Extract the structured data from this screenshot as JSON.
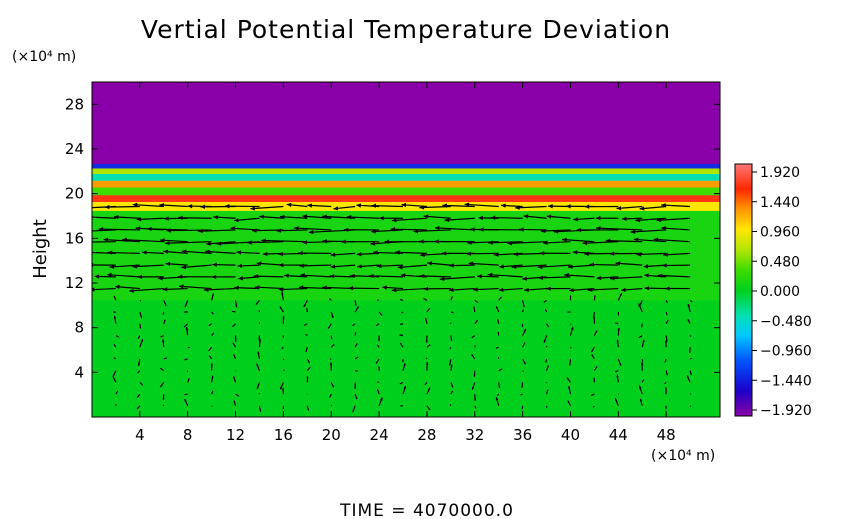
{
  "chart_data": {
    "type": "heatmap",
    "title": "Vertial Potential Temperature Deviation",
    "ylabel": "Height",
    "y_unit": "(×10⁴ m)",
    "x_unit": "(×10⁴ m)",
    "xlim": [
      0,
      52.5
    ],
    "ylim": [
      0,
      30
    ],
    "x_ticks": [
      "4",
      "8",
      "12",
      "16",
      "20",
      "24",
      "28",
      "32",
      "36",
      "40",
      "44",
      "48"
    ],
    "y_ticks": [
      "4",
      "8",
      "12",
      "16",
      "20",
      "24",
      "28"
    ],
    "colorbar": {
      "min": -1.92,
      "max": 1.92,
      "ticks": [
        "1.920",
        "1.440",
        "0.960",
        "0.480",
        "0.000",
        "−0.480",
        "−0.960",
        "−1.440",
        "−1.920"
      ]
    },
    "field_bands": [
      {
        "from": 0,
        "to": 10.5,
        "value": 0.0
      },
      {
        "from": 10.5,
        "to": 18.5,
        "value": 0.12
      },
      {
        "from": 18.5,
        "to": 19.3,
        "value": 0.9
      },
      {
        "from": 19.3,
        "to": 19.9,
        "value": 1.6
      },
      {
        "from": 19.9,
        "to": 20.6,
        "value": 0.3
      },
      {
        "from": 20.6,
        "to": 21.2,
        "value": 1.2
      },
      {
        "from": 21.2,
        "to": 21.8,
        "value": -0.4
      },
      {
        "from": 21.8,
        "to": 22.3,
        "value": 0.6
      },
      {
        "from": 22.3,
        "to": 22.7,
        "value": -1.3
      },
      {
        "from": 22.7,
        "to": 30,
        "value": -1.92
      }
    ],
    "wind_field": "velocity vectors (arrows) overlaid; strong westward flow between heights 11 and 20, weak near-vertical arrows below 11"
  },
  "footer": {
    "time_label": "TIME  =  4070000.0"
  }
}
